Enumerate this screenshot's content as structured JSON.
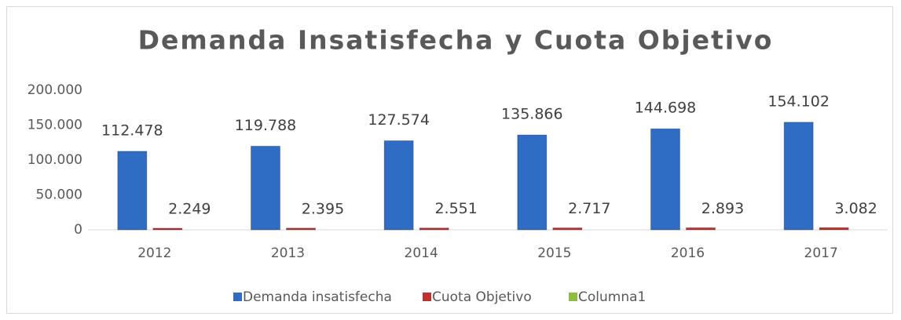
{
  "chart_data": {
    "type": "bar",
    "title": "Demanda Insatisfecha y Cuota Objetivo",
    "categories": [
      "2012",
      "2013",
      "2014",
      "2015",
      "2016",
      "2017"
    ],
    "series": [
      {
        "name": "Demanda insatisfecha",
        "color": "#2f6cc4",
        "values": [
          112478,
          119788,
          127574,
          135866,
          144698,
          154102
        ],
        "value_labels": [
          "112.478",
          "119.788",
          "127.574",
          "135.866",
          "144.698",
          "154.102"
        ]
      },
      {
        "name": "Cuota Objetivo",
        "color": "#c0302e",
        "values": [
          2249,
          2395,
          2551,
          2717,
          2893,
          3082
        ],
        "value_labels": [
          "2.249",
          "2.395",
          "2.551",
          "2.717",
          "2.893",
          "3.082"
        ]
      },
      {
        "name": "Columna1",
        "color": "#8cbf3f",
        "values": [
          null,
          null,
          null,
          null,
          null,
          null
        ]
      }
    ],
    "ylim": [
      0,
      200000
    ],
    "yticks": [
      0,
      {
        "value": 50000,
        "label": "50.000"
      },
      {
        "value": 100000,
        "label": "100.000"
      },
      {
        "value": 150000,
        "label": "150.000"
      },
      {
        "value": 200000,
        "label": "200.000"
      }
    ],
    "grid": false,
    "legend": "bottom"
  }
}
